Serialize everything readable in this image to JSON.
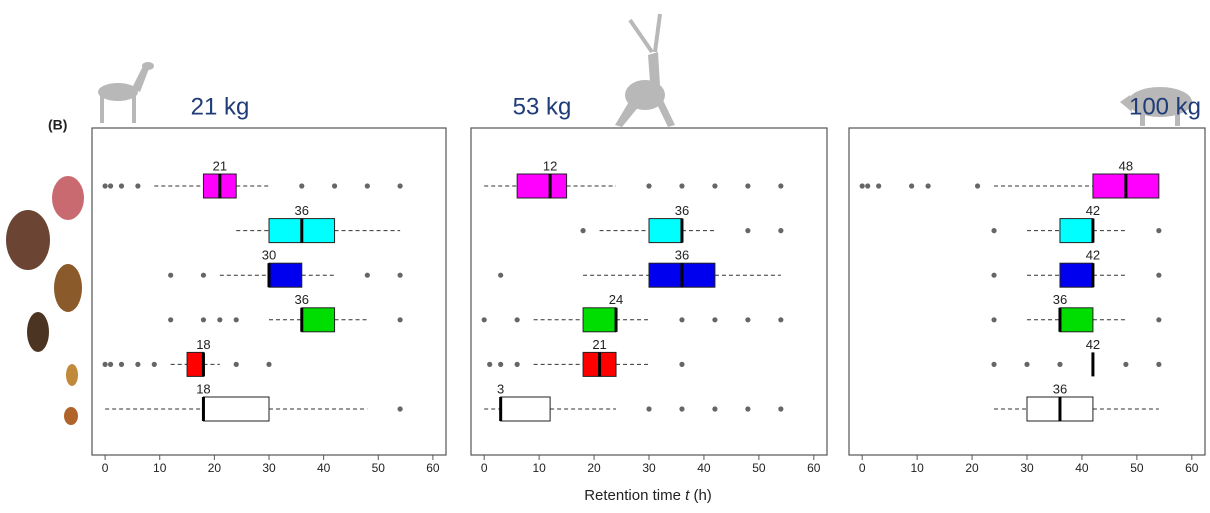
{
  "label": "(B)",
  "x_label": [
    "Retention time ",
    "t",
    " (h)"
  ],
  "chart_data": [
    {
      "type": "boxplot",
      "title": "21 kg",
      "xlim": [
        -2.4,
        62.4
      ],
      "xticks": [
        0,
        10,
        20,
        30,
        40,
        50,
        60
      ],
      "boxes": [
        {
          "color": "#ff00ff",
          "low": 9,
          "q1": 18,
          "median": 21,
          "q3": 24,
          "high": 30,
          "outliers": [
            0,
            1,
            3,
            6,
            36,
            42,
            48,
            54
          ]
        },
        {
          "color": "#00ffff",
          "low": 24,
          "q1": 30,
          "median": 36,
          "q3": 42,
          "high": 54,
          "outliers": []
        },
        {
          "color": "#0000ee",
          "low": 21,
          "q1": 30,
          "median": 30,
          "q3": 36,
          "high": 42,
          "outliers": [
            12,
            18,
            48,
            54
          ]
        },
        {
          "color": "#00dd00",
          "low": 30,
          "q1": 36,
          "median": 36,
          "q3": 42,
          "high": 48,
          "outliers": [
            12,
            18,
            21,
            24,
            54
          ]
        },
        {
          "color": "#ff0000",
          "low": 12,
          "q1": 15,
          "median": 18,
          "q3": 18,
          "high": 21,
          "outliers": [
            0,
            1,
            3,
            6,
            9,
            24,
            30
          ]
        },
        {
          "color": "#ffffff",
          "low": 0,
          "q1": 18,
          "median": 18,
          "q3": 30,
          "high": 48,
          "outliers": [
            54
          ]
        }
      ]
    },
    {
      "type": "boxplot",
      "title": "53 kg",
      "xlim": [
        -2.4,
        62.4
      ],
      "xticks": [
        0,
        10,
        20,
        30,
        40,
        50,
        60
      ],
      "boxes": [
        {
          "color": "#ff00ff",
          "low": 0,
          "q1": 6,
          "median": 12,
          "q3": 15,
          "high": 24,
          "outliers": [
            30,
            36,
            42,
            48,
            54
          ]
        },
        {
          "color": "#00ffff",
          "low": 21,
          "q1": 30,
          "median": 36,
          "q3": 36,
          "high": 42,
          "outliers": [
            18,
            48,
            54
          ]
        },
        {
          "color": "#0000ee",
          "low": 18,
          "q1": 30,
          "median": 36,
          "q3": 42,
          "high": 54,
          "outliers": [
            3
          ]
        },
        {
          "color": "#00dd00",
          "low": 9,
          "q1": 18,
          "median": 24,
          "q3": 24,
          "high": 30,
          "outliers": [
            0,
            6,
            36,
            42,
            48,
            54
          ]
        },
        {
          "color": "#ff0000",
          "low": 9,
          "q1": 18,
          "median": 21,
          "q3": 24,
          "high": 30,
          "outliers": [
            1,
            3,
            6,
            36
          ]
        },
        {
          "color": "#ffffff",
          "low": 0,
          "q1": 3,
          "median": 3,
          "q3": 12,
          "high": 24,
          "outliers": [
            30,
            36,
            42,
            48,
            54
          ]
        }
      ]
    },
    {
      "type": "boxplot",
      "title": "100 kg",
      "xlim": [
        -2.4,
        62.4
      ],
      "xticks": [
        0,
        10,
        20,
        30,
        40,
        50,
        60
      ],
      "boxes": [
        {
          "color": "#ff00ff",
          "low": 24,
          "q1": 42,
          "median": 48,
          "q3": 54,
          "high": 54,
          "outliers": [
            0,
            1,
            3,
            9,
            12,
            21
          ]
        },
        {
          "color": "#00ffff",
          "low": 30,
          "q1": 36,
          "median": 42,
          "q3": 42,
          "high": 48,
          "outliers": [
            24,
            54
          ]
        },
        {
          "color": "#0000ee",
          "low": 30,
          "q1": 36,
          "median": 42,
          "q3": 42,
          "high": 48,
          "outliers": [
            24,
            54
          ]
        },
        {
          "color": "#00dd00",
          "low": 30,
          "q1": 36,
          "median": 36,
          "q3": 42,
          "high": 48,
          "outliers": [
            24,
            54
          ]
        },
        {
          "color": "#ff0000",
          "low": 42,
          "q1": 42,
          "median": 42,
          "q3": 42,
          "high": 42,
          "outliers": [
            24,
            30,
            36,
            48,
            54
          ]
        },
        {
          "color": "#ffffff",
          "low": 24,
          "q1": 30,
          "median": 36,
          "q3": 42,
          "high": 54,
          "outliers": []
        }
      ]
    }
  ]
}
